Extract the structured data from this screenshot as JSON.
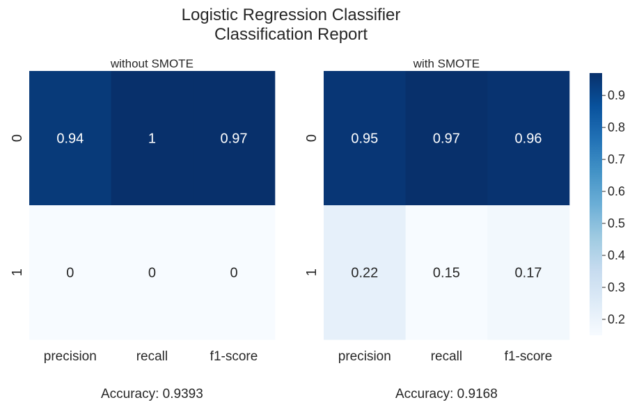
{
  "chart_data": {
    "type": "heatmap",
    "title": "Logistic Regression Classifier\nClassification Report",
    "colormap": "Blues",
    "colorbar": {
      "min": 0.15,
      "max": 0.97,
      "ticks": [
        0.2,
        0.3,
        0.4,
        0.5,
        0.6,
        0.7,
        0.8,
        0.9
      ],
      "tick_labels": [
        "0.2",
        "0.3",
        "0.4",
        "0.5",
        "0.6",
        "0.7",
        "0.8",
        "0.9"
      ]
    },
    "panels": [
      {
        "title": "without SMOTE",
        "xlabel": "Accuracy: 0.9393",
        "columns": [
          "precision",
          "recall",
          "f1-score"
        ],
        "rows": [
          "0",
          "1"
        ],
        "values": [
          [
            0.94,
            1.0,
            0.97
          ],
          [
            0.0,
            0.0,
            0.0
          ]
        ],
        "labels": [
          [
            "0.94",
            "1",
            "0.97"
          ],
          [
            "0",
            "0",
            "0"
          ]
        ]
      },
      {
        "title": "with SMOTE",
        "xlabel": "Accuracy: 0.9168",
        "columns": [
          "precision",
          "recall",
          "f1-score"
        ],
        "rows": [
          "0",
          "1"
        ],
        "values": [
          [
            0.95,
            0.97,
            0.96
          ],
          [
            0.22,
            0.15,
            0.17
          ]
        ],
        "labels": [
          [
            "0.95",
            "0.97",
            "0.96"
          ],
          [
            "0.22",
            "0.15",
            "0.17"
          ]
        ]
      }
    ]
  }
}
